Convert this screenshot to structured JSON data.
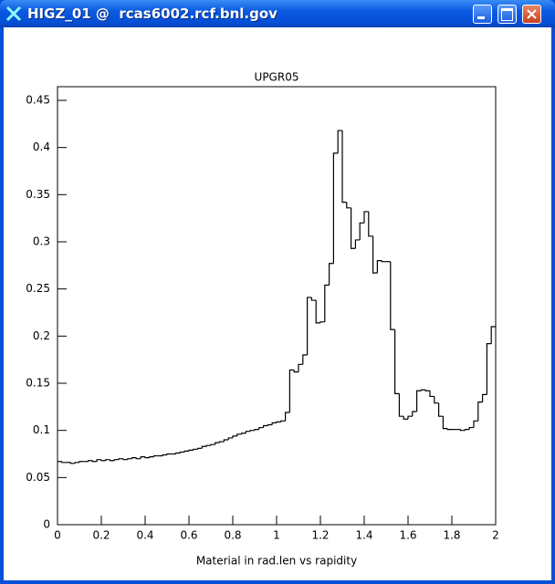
{
  "window": {
    "title": "HIGZ_01 @  rcas6002.rcf.bnl.gov"
  },
  "chart_data": {
    "type": "histogram",
    "title": "UPGR05",
    "x_label": "Material in rad.len vs rapidity",
    "color": "#000000",
    "bins": [
      0,
      0.02,
      0.04,
      0.06,
      0.08,
      0.1,
      0.12,
      0.14,
      0.16,
      0.18,
      0.2,
      0.22,
      0.24,
      0.26,
      0.28,
      0.3,
      0.32,
      0.34,
      0.36,
      0.38,
      0.4,
      0.42,
      0.44,
      0.46,
      0.48,
      0.5,
      0.52,
      0.54,
      0.56,
      0.58,
      0.6,
      0.62,
      0.64,
      0.66,
      0.68,
      0.7,
      0.72,
      0.74,
      0.76,
      0.78,
      0.8,
      0.82,
      0.84,
      0.86,
      0.88,
      0.9,
      0.92,
      0.94,
      0.96,
      0.98,
      1,
      1.02,
      1.04,
      1.06,
      1.08,
      1.1,
      1.12,
      1.14,
      1.16,
      1.18,
      1.2,
      1.22,
      1.24,
      1.26,
      1.28,
      1.3,
      1.32,
      1.34,
      1.36,
      1.38,
      1.4,
      1.42,
      1.44,
      1.46,
      1.48,
      1.5,
      1.52,
      1.54,
      1.56,
      1.58,
      1.6,
      1.62,
      1.64,
      1.66,
      1.68,
      1.7,
      1.72,
      1.74,
      1.76,
      1.78,
      1.8,
      1.82,
      1.84,
      1.86,
      1.88,
      1.9,
      1.92,
      1.94,
      1.96,
      1.98,
      2
    ],
    "values": [
      0.067,
      0.066,
      0.066,
      0.065,
      0.066,
      0.067,
      0.067,
      0.068,
      0.067,
      0.069,
      0.068,
      0.069,
      0.068,
      0.069,
      0.07,
      0.069,
      0.07,
      0.071,
      0.07,
      0.072,
      0.071,
      0.072,
      0.073,
      0.073,
      0.074,
      0.075,
      0.075,
      0.076,
      0.077,
      0.078,
      0.079,
      0.08,
      0.081,
      0.083,
      0.084,
      0.085,
      0.087,
      0.088,
      0.09,
      0.092,
      0.094,
      0.096,
      0.097,
      0.099,
      0.1,
      0.101,
      0.103,
      0.105,
      0.106,
      0.108,
      0.109,
      0.11,
      0.119,
      0.164,
      0.162,
      0.17,
      0.18,
      0.241,
      0.238,
      0.214,
      0.215,
      0.254,
      0.277,
      0.394,
      0.418,
      0.342,
      0.336,
      0.293,
      0.302,
      0.32,
      0.332,
      0.306,
      0.267,
      0.28,
      0.279,
      0.279,
      0.207,
      0.139,
      0.115,
      0.112,
      0.115,
      0.12,
      0.142,
      0.143,
      0.142,
      0.136,
      0.129,
      0.115,
      0.102,
      0.101,
      0.101,
      0.101,
      0.1,
      0.101,
      0.103,
      0.11,
      0.13,
      0.138,
      0.192,
      0.21
    ],
    "xlim": [
      0,
      2
    ],
    "ylim": [
      0,
      0.4645
    ],
    "xticks": [
      0,
      0.2,
      0.4,
      0.6,
      0.8,
      1,
      1.2,
      1.4,
      1.6,
      1.8,
      2
    ],
    "yticks": [
      0,
      0.05,
      0.1,
      0.15,
      0.2,
      0.25,
      0.3,
      0.35,
      0.4,
      0.45
    ]
  }
}
